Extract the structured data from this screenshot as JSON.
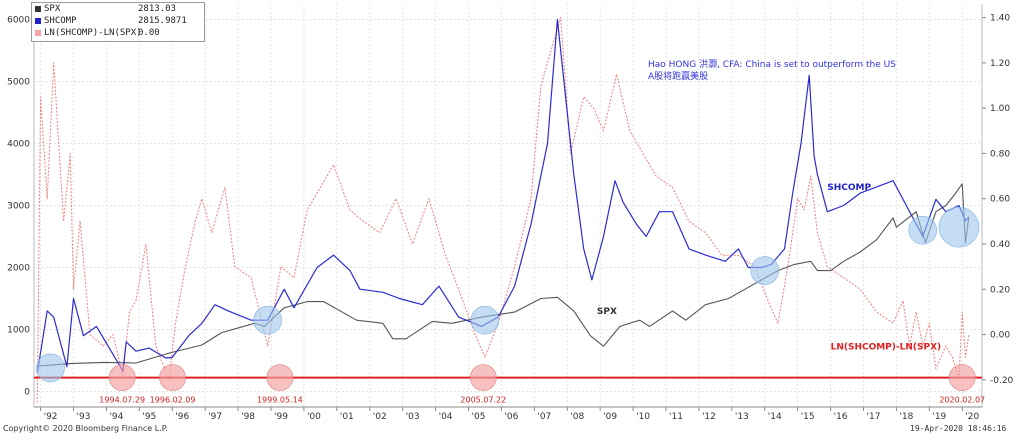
{
  "legend": {
    "items": [
      {
        "name": "SPX",
        "value": "2813.03",
        "color": "#333333"
      },
      {
        "name": "SHCOMP",
        "value": "2815.9871",
        "color": "#2222cc"
      },
      {
        "name": "LN(SHCOMP)-LN(SPX)",
        "value": "0.00",
        "color": "#f4a6a6"
      }
    ]
  },
  "annotation": {
    "line1": "Hao HONG 洪灏, CFA: China is set to outperform the US",
    "line2": "A股将跑赢美股",
    "color": "#3333dd"
  },
  "footer": {
    "copyright": "Copyright© 2020 Bloomberg Finance L.P.",
    "timestamp": "19-Apr-2020 18:46:16"
  },
  "colors": {
    "spx": "#555555",
    "shcomp": "#2b2bd0",
    "ratio": "#f08080",
    "support_line": "#e02020",
    "circle_blue": "#9cc7ec",
    "circle_red": "#f4a0a0"
  },
  "chart_data": {
    "type": "line",
    "left_axis": {
      "ticks": [
        0,
        1000,
        2000,
        3000,
        4000,
        5000,
        6000
      ],
      "range": [
        -250,
        6250
      ]
    },
    "right_axis": {
      "ticks": [
        -0.2,
        0.0,
        0.2,
        0.4,
        0.6,
        0.8,
        1.0,
        1.2,
        1.4
      ],
      "labels": [
        "-0.20",
        "0.00",
        "0.20",
        "0.40",
        "0.60",
        "0.80",
        "1.00",
        "1.20",
        "1.40"
      ],
      "range": [
        -0.32,
        1.46
      ]
    },
    "x_axis": {
      "range": [
        1991.9,
        2020.7
      ],
      "ticks": [
        {
          "label": "'92",
          "x": 1992.1
        },
        {
          "label": "'93",
          "x": 1993.1
        },
        {
          "label": "'94",
          "x": 1994.1
        },
        {
          "label": "'95",
          "x": 1995.1
        },
        {
          "label": "'96",
          "x": 1996.1
        },
        {
          "label": "'97",
          "x": 1997.1
        },
        {
          "label": "'98",
          "x": 1998.1
        },
        {
          "label": "'99",
          "x": 1999.1
        },
        {
          "label": "'00",
          "x": 2000.1
        },
        {
          "label": "'01",
          "x": 2001.1
        },
        {
          "label": "'02",
          "x": 2002.1
        },
        {
          "label": "'03",
          "x": 2003.1
        },
        {
          "label": "'04",
          "x": 2004.1
        },
        {
          "label": "'05",
          "x": 2005.1
        },
        {
          "label": "'06",
          "x": 2006.1
        },
        {
          "label": "'07",
          "x": 2007.1
        },
        {
          "label": "'08",
          "x": 2008.1
        },
        {
          "label": "'09",
          "x": 2009.1
        },
        {
          "label": "'10",
          "x": 2010.1
        },
        {
          "label": "'11",
          "x": 2011.1
        },
        {
          "label": "'12",
          "x": 2012.1
        },
        {
          "label": "'13",
          "x": 2013.1
        },
        {
          "label": "'14",
          "x": 2014.1
        },
        {
          "label": "'15",
          "x": 2015.1
        },
        {
          "label": "'16",
          "x": 2016.1
        },
        {
          "label": "'17",
          "x": 2017.1
        },
        {
          "label": "'18",
          "x": 2018.1
        },
        {
          "label": "'19",
          "x": 2019.1
        },
        {
          "label": "'20",
          "x": 2020.1
        }
      ]
    },
    "series": [
      {
        "name": "SPX",
        "axis": "left",
        "x": [
          1992.0,
          1993.0,
          1994.0,
          1995.0,
          1996.0,
          1997.0,
          1997.6,
          1998.6,
          1998.9,
          1999.5,
          2000.2,
          2000.7,
          2001.7,
          2002.5,
          2002.8,
          2003.2,
          2004.0,
          2004.6,
          2005.5,
          2006.5,
          2007.3,
          2007.8,
          2008.3,
          2008.8,
          2009.2,
          2009.7,
          2010.3,
          2010.6,
          2011.3,
          2011.7,
          2012.3,
          2013.0,
          2013.5,
          2014.0,
          2014.5,
          2015.0,
          2015.5,
          2015.7,
          2016.1,
          2016.5,
          2017.0,
          2017.5,
          2018.0,
          2018.1,
          2018.7,
          2018.98,
          2019.3,
          2019.6,
          2019.9,
          2020.1,
          2020.2,
          2020.3
        ],
        "y": [
          410,
          450,
          470,
          460,
          620,
          750,
          950,
          1100,
          1050,
          1350,
          1450,
          1450,
          1150,
          1100,
          850,
          850,
          1130,
          1100,
          1200,
          1280,
          1500,
          1520,
          1300,
          900,
          730,
          1050,
          1150,
          1050,
          1300,
          1150,
          1400,
          1500,
          1650,
          1800,
          1950,
          2050,
          2100,
          1950,
          1950,
          2100,
          2250,
          2450,
          2800,
          2650,
          2900,
          2400,
          2900,
          3000,
          3200,
          3350,
          2400,
          2813
        ]
      },
      {
        "name": "SHCOMP",
        "axis": "left",
        "x": [
          1992.0,
          1992.3,
          1992.5,
          1992.9,
          1993.1,
          1993.4,
          1993.8,
          1994.3,
          1994.6,
          1994.7,
          1995.0,
          1995.4,
          1995.9,
          1996.1,
          1996.6,
          1997.0,
          1997.4,
          1997.8,
          1998.5,
          1999.0,
          1999.5,
          1999.8,
          2000.5,
          2001.0,
          2001.5,
          2001.8,
          2002.5,
          2003.0,
          2003.7,
          2004.2,
          2004.8,
          2005.5,
          2006.0,
          2006.5,
          2007.0,
          2007.5,
          2007.8,
          2008.3,
          2008.6,
          2008.85,
          2009.2,
          2009.55,
          2009.8,
          2010.2,
          2010.5,
          2010.9,
          2011.3,
          2011.8,
          2012.3,
          2012.9,
          2013.3,
          2013.6,
          2014.0,
          2014.3,
          2014.7,
          2014.95,
          2015.2,
          2015.45,
          2015.6,
          2015.7,
          2016.0,
          2016.5,
          2017.0,
          2017.5,
          2018.0,
          2018.4,
          2018.9,
          2019.3,
          2019.6,
          2020.0,
          2020.2,
          2020.3
        ],
        "y": [
          300,
          1300,
          1200,
          400,
          1500,
          900,
          1050,
          600,
          330,
          800,
          650,
          700,
          540,
          550,
          900,
          1100,
          1400,
          1300,
          1150,
          1150,
          1650,
          1350,
          2000,
          2200,
          1950,
          1650,
          1600,
          1500,
          1400,
          1700,
          1200,
          1050,
          1200,
          1700,
          2700,
          4000,
          6000,
          3500,
          2300,
          1800,
          2500,
          3400,
          3050,
          2700,
          2500,
          2900,
          2900,
          2300,
          2200,
          2100,
          2300,
          2000,
          2000,
          2050,
          2300,
          3200,
          4000,
          5100,
          3800,
          3500,
          2900,
          3000,
          3200,
          3300,
          3400,
          3000,
          2500,
          3100,
          2900,
          3000,
          2750,
          2815.99
        ]
      },
      {
        "name": "LN(SHCOMP)-LN(SPX)",
        "axis": "right",
        "x": [
          1992.0,
          1992.1,
          1992.3,
          1992.5,
          1992.8,
          1993.0,
          1993.1,
          1993.3,
          1993.6,
          1994.0,
          1994.3,
          1994.6,
          1994.8,
          1995.0,
          1995.3,
          1995.6,
          1996.0,
          1996.2,
          1996.5,
          1996.8,
          1997.0,
          1997.3,
          1997.7,
          1998.0,
          1998.5,
          1999.0,
          1999.4,
          1999.8,
          2000.2,
          2000.6,
          2001.0,
          2001.5,
          2001.9,
          2002.4,
          2002.9,
          2003.4,
          2003.9,
          2004.4,
          2004.8,
          2005.3,
          2005.6,
          2006.0,
          2006.5,
          2007.0,
          2007.3,
          2007.7,
          2007.9,
          2008.2,
          2008.6,
          2008.9,
          2009.2,
          2009.6,
          2010.0,
          2010.4,
          2010.8,
          2011.3,
          2011.8,
          2012.3,
          2012.8,
          2013.3,
          2013.8,
          2014.2,
          2014.5,
          2014.8,
          2015.1,
          2015.3,
          2015.5,
          2015.7,
          2016.0,
          2016.5,
          2017.0,
          2017.5,
          2018.0,
          2018.3,
          2018.5,
          2018.7,
          2018.9,
          2019.1,
          2019.3,
          2019.6,
          2019.8,
          2020.0,
          2020.1,
          2020.2,
          2020.3
        ],
        "y": [
          -0.3,
          1.05,
          0.6,
          1.2,
          0.5,
          0.8,
          0.2,
          0.5,
          0.0,
          -0.05,
          0.0,
          -0.18,
          0.1,
          0.15,
          0.4,
          -0.05,
          -0.2,
          0.05,
          0.3,
          0.5,
          0.6,
          0.45,
          0.65,
          0.3,
          0.25,
          -0.05,
          0.3,
          0.25,
          0.55,
          0.65,
          0.75,
          0.55,
          0.5,
          0.45,
          0.6,
          0.4,
          0.6,
          0.35,
          0.2,
          0.0,
          -0.1,
          0.05,
          0.3,
          0.6,
          1.1,
          1.3,
          1.4,
          0.8,
          1.05,
          1.0,
          0.9,
          1.15,
          0.9,
          0.8,
          0.7,
          0.65,
          0.5,
          0.45,
          0.35,
          0.35,
          0.3,
          0.15,
          0.05,
          0.3,
          0.6,
          0.55,
          0.7,
          0.45,
          0.3,
          0.25,
          0.2,
          0.1,
          0.05,
          0.15,
          -0.05,
          0.1,
          -0.05,
          0.05,
          -0.15,
          -0.05,
          -0.1,
          -0.2,
          0.1,
          -0.1,
          0.0
        ]
      }
    ],
    "support_line": {
      "axis": "right",
      "y": -0.19
    },
    "series_labels": [
      {
        "text": "SHCOMP",
        "x": 2016.0,
        "y": 3250,
        "color": "#2222cc"
      },
      {
        "text": "SPX",
        "x": 2009.0,
        "y": 1250,
        "color": "#333333"
      },
      {
        "text": "LN(SHCOMP)-LN(SPX)",
        "x": 2016.1,
        "y": 680,
        "color": "#e02020"
      }
    ],
    "trough_markers": [
      {
        "label": "1994.07.29",
        "x": 1994.58,
        "y": 600,
        "color": "red"
      },
      {
        "label": "1996.02.09",
        "x": 1996.11,
        "y": 600,
        "color": "red"
      },
      {
        "label": "1999.05.14",
        "x": 1999.37,
        "y": 600,
        "color": "red"
      },
      {
        "label": "2005.07.22",
        "x": 2005.55,
        "y": 600,
        "color": "red"
      },
      {
        "label": "2020.02.07",
        "x": 2020.1,
        "y": 600,
        "color": "red"
      }
    ],
    "highlight_circles": [
      {
        "x": 1992.4,
        "y": 380,
        "color": "blue"
      },
      {
        "x": 1999.0,
        "y": 1150,
        "color": "blue"
      },
      {
        "x": 2005.6,
        "y": 1150,
        "color": "blue"
      },
      {
        "x": 2014.1,
        "y": 1950,
        "color": "blue"
      },
      {
        "x": 2018.9,
        "y": 2600,
        "color": "blue"
      },
      {
        "x": 2020.0,
        "y": 2650,
        "color": "blue"
      }
    ]
  }
}
